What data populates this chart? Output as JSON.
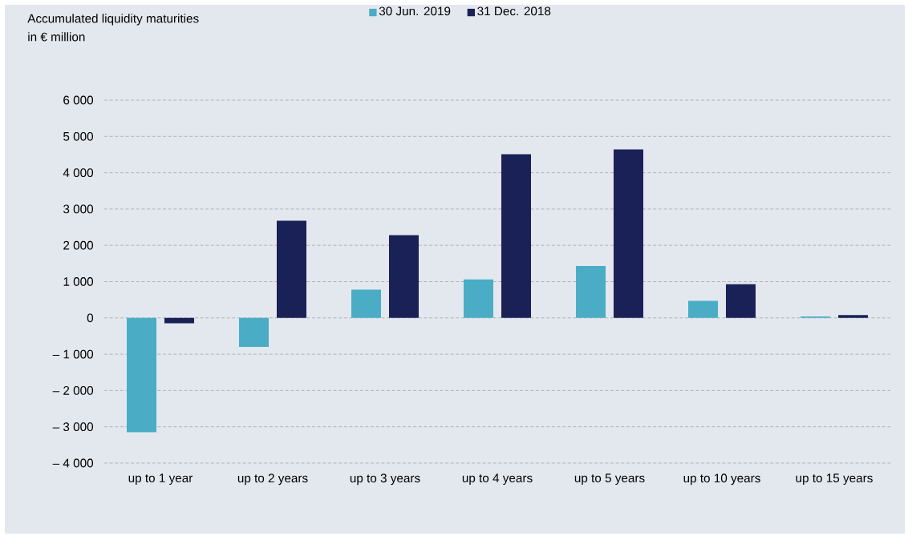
{
  "chart_data": {
    "type": "bar",
    "title": "Accumulated liquidity maturities",
    "ylabel": "in € million",
    "categories": [
      "up to 1 year",
      "up to 2 years",
      "up to 3 years",
      "up to 4 years",
      "up to 5 years",
      "up to 10 years",
      "up to 15 years"
    ],
    "series": [
      {
        "name": "30 Jun. 2019",
        "color": "#4aadc5",
        "values": [
          -3150,
          -800,
          780,
          1060,
          1430,
          470,
          40
        ]
      },
      {
        "name": "31 Dec. 2018",
        "color": "#1a2157",
        "values": [
          -150,
          2680,
          2280,
          4510,
          4640,
          930,
          80
        ]
      }
    ],
    "ylim": [
      -4000,
      6000
    ],
    "yticks": [
      {
        "value": -4000,
        "label": "– 4 000"
      },
      {
        "value": -3000,
        "label": "– 3 000"
      },
      {
        "value": -2000,
        "label": "– 2 000"
      },
      {
        "value": -1000,
        "label": "– 1 000"
      },
      0,
      {
        "value": 1000,
        "label": "1 000"
      },
      {
        "value": 2000,
        "label": "2 000"
      },
      {
        "value": 3000,
        "label": "3 000"
      },
      {
        "value": 4000,
        "label": "4 000"
      },
      {
        "value": 5000,
        "label": "5 000"
      },
      {
        "value": 6000,
        "label": "6 000"
      }
    ],
    "grid": "y",
    "legend": "top"
  }
}
